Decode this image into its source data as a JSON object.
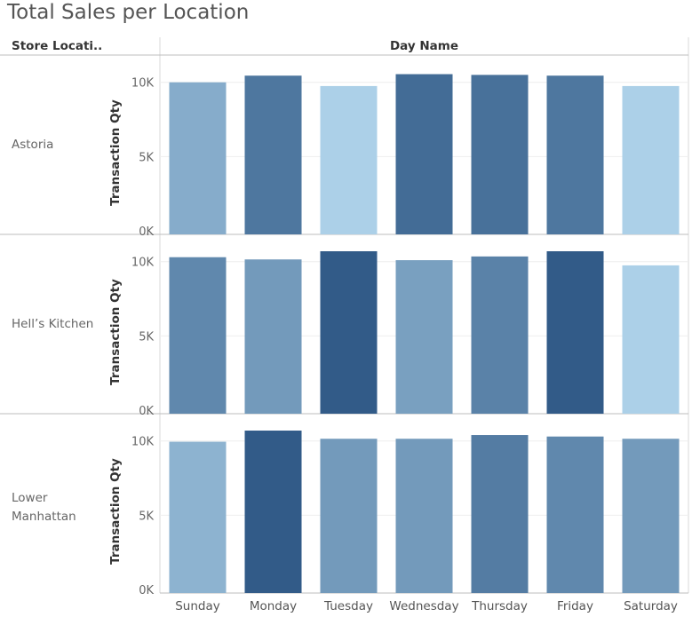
{
  "title": "Total Sales per Location",
  "header": {
    "row_field": "Store Locati..",
    "column_field": "Day Name"
  },
  "chart_data": {
    "type": "bar",
    "layout": "small-multiples (rows = store location)",
    "categories": [
      "Sunday",
      "Monday",
      "Tuesday",
      "Wednesday",
      "Thursday",
      "Friday",
      "Saturday"
    ],
    "ylabel": "Transaction Qty",
    "yticks": [
      "0K",
      "5K",
      "10K"
    ],
    "ylim": [
      0,
      11000
    ],
    "grid": true,
    "legend": "none",
    "color_encoding": "bar shade darkens with value",
    "panels": [
      {
        "label": "Astoria",
        "values": [
          10000,
          10450,
          9750,
          10550,
          10500,
          10450,
          9750
        ]
      },
      {
        "label": "Hell’s Kitchen",
        "values": [
          10300,
          10150,
          10700,
          10100,
          10350,
          10700,
          9750
        ]
      },
      {
        "label": "Lower Manhattan",
        "values": [
          9950,
          10700,
          10150,
          10150,
          10400,
          10300,
          10150
        ]
      }
    ]
  }
}
